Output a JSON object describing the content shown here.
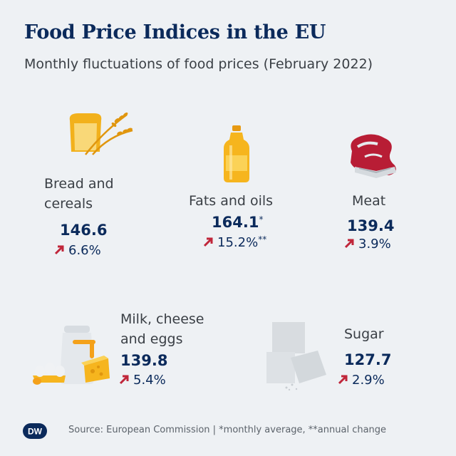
{
  "title": "Food Price Indices in the EU",
  "subtitle": "Monthly fluctuations of food prices (February 2022)",
  "categories": [
    {
      "name_line1": "Bread and",
      "name_line2": "cereals",
      "value": "146.6",
      "value_mark": "",
      "change": "6.6%",
      "change_mark": ""
    },
    {
      "name_line1": "Fats and oils",
      "name_line2": "",
      "value": "164.1",
      "value_mark": "*",
      "change": "15.2%",
      "change_mark": "**"
    },
    {
      "name_line1": "Meat",
      "name_line2": "",
      "value": "139.4",
      "value_mark": "",
      "change": "3.9%",
      "change_mark": ""
    },
    {
      "name_line1": "Milk, cheese",
      "name_line2": "and eggs",
      "value": "139.8",
      "value_mark": "",
      "change": "5.4%",
      "change_mark": ""
    },
    {
      "name_line1": "Sugar",
      "name_line2": "",
      "value": "127.7",
      "value_mark": "",
      "change": "2.9%",
      "change_mark": ""
    }
  ],
  "footer": {
    "logo_text": "DW",
    "source": "Source: European Commission | *monthly average, **annual change"
  },
  "colors": {
    "title": "#0b2a5b",
    "arrow": "#c0263a",
    "background": "#eef1f4"
  },
  "icons": [
    "bread-icon",
    "oil-bottle-icon",
    "steak-icon",
    "dairy-icon",
    "sugar-cubes-icon",
    "up-arrow-icon"
  ]
}
